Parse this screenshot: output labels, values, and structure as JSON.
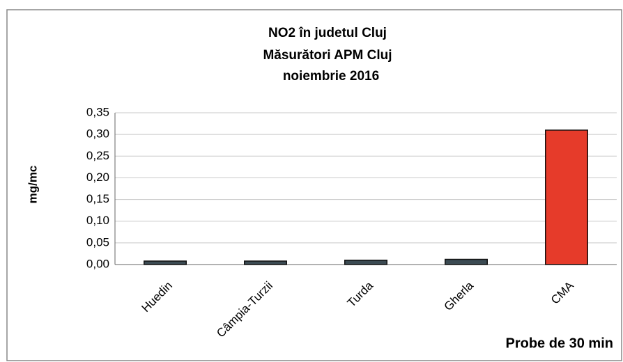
{
  "chart_data": {
    "type": "bar",
    "title": [
      "NO2 în judetul Cluj",
      "Măsurători APM Cluj",
      "noiembrie 2016"
    ],
    "y_label": "mg/mc",
    "x_label": "Probe de 30 min",
    "categories": [
      "Huedin",
      "Câmpia-Turzii",
      "Turda",
      "Gherla",
      "CMA"
    ],
    "values": [
      0.008,
      0.008,
      0.01,
      0.012,
      0.31
    ],
    "colors": [
      "#3b4a52",
      "#3b4a52",
      "#3b4a52",
      "#3b4a52",
      "#e63b2a"
    ],
    "ylim": [
      0,
      0.35
    ],
    "yticks": [
      {
        "value": 0,
        "label": "0,00"
      },
      {
        "value": 0.05,
        "label": "0,05"
      },
      {
        "value": 0.1,
        "label": "0,10"
      },
      {
        "value": 0.15,
        "label": "0,15"
      },
      {
        "value": 0.2,
        "label": "0,20"
      },
      {
        "value": 0.25,
        "label": "0,25"
      },
      {
        "value": 0.3,
        "label": "0,30"
      },
      {
        "value": 0.35,
        "label": "0,35"
      }
    ],
    "grid": true
  }
}
